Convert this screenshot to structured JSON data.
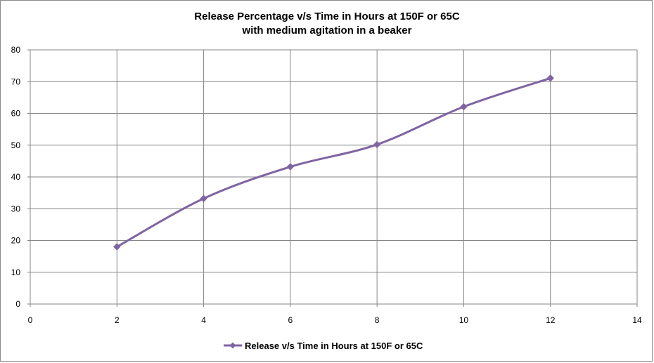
{
  "chart_data": {
    "type": "line",
    "title": "Release Percentage v/s Time in Hours at 150F or 65C",
    "title_lines": [
      "Release Percentage v/s Time in Hours at 150F or 65C",
      "with medium agitation in a beaker"
    ],
    "xlabel": "",
    "ylabel": "",
    "xlim": [
      0,
      14
    ],
    "ylim": [
      0,
      80
    ],
    "x_ticks": [
      0,
      2,
      4,
      6,
      8,
      10,
      12,
      14
    ],
    "y_ticks": [
      0,
      10,
      20,
      30,
      40,
      50,
      60,
      70,
      80
    ],
    "grid": true,
    "legend_position": "bottom",
    "series": [
      {
        "name": "Release v/s Time in Hours at 150F or 65C",
        "x": [
          2,
          4,
          6,
          8,
          10,
          12
        ],
        "values": [
          18,
          33.2,
          43.2,
          50.2,
          62.1,
          71.1
        ],
        "color": "#8064A2",
        "marker": "diamond",
        "smooth": true
      }
    ]
  }
}
